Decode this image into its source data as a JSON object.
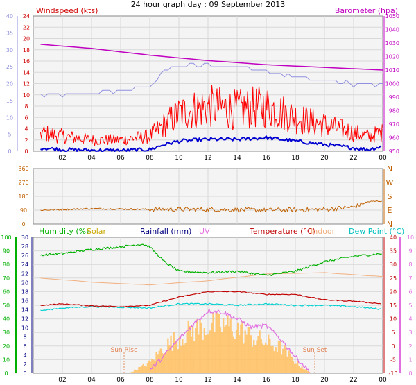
{
  "page": {
    "title": "24 hour graph day : 09 September 2013"
  },
  "colors": {
    "wind": "#ff0000",
    "gust_blue": "#0000d0",
    "windAxis": "#9090e0",
    "baro": "#c000c0",
    "baroAxis": "#c000c0",
    "dir": "#c06000",
    "humidity": "#00b000",
    "solar": "#c8a800",
    "rainfall": "#000080",
    "uv": "#e070e0",
    "temperature": "#c00000",
    "indoor": "#f0b080",
    "dewpoint": "#00d0d0",
    "solarFill": "#ffc060",
    "text": "#000000"
  },
  "chart_data": [
    {
      "type": "line",
      "id": "wind_pressure",
      "title": "",
      "legend": {
        "windspeed": "Windspeed (kts)",
        "barometer": "Barometer (hpa)"
      },
      "x_ticks": [
        "02",
        "04",
        "06",
        "08",
        "10",
        "12",
        "14",
        "16",
        "18",
        "20",
        "22",
        "00"
      ],
      "left_axis": {
        "ticks": [
          "0",
          "5",
          "10",
          "15",
          "20",
          "25",
          "30",
          "35",
          "40"
        ],
        "range": [
          0,
          40
        ],
        "color": "#9090e0"
      },
      "left_axis_inner": {
        "ticks": [
          "0",
          "2",
          "4",
          "6",
          "8",
          "10",
          "12",
          "14",
          "16",
          "18",
          "20",
          "22",
          "24"
        ],
        "range": [
          0,
          24
        ],
        "color": "#d00000"
      },
      "right_axis": {
        "ticks": [
          "950",
          "960",
          "970",
          "980",
          "990",
          "1000",
          "1010",
          "1020",
          "1030",
          "1040",
          "1050"
        ],
        "range": [
          950,
          1050
        ],
        "color": "#c000c0"
      },
      "grid": true,
      "series": [
        {
          "name": "Barometer",
          "unit": "hpa",
          "x_hours": [
            0.5,
            4,
            8,
            12,
            16,
            20,
            24
          ],
          "values": [
            1029,
            1026,
            1021,
            1017,
            1014,
            1012,
            1010
          ]
        },
        {
          "name": "Windspeed avg",
          "x_hours": [
            0.5,
            2,
            4,
            6,
            8,
            9,
            10,
            12,
            14,
            16,
            18,
            20,
            22,
            23,
            24
          ],
          "values": [
            1,
            0.5,
            0.3,
            0.2,
            0.5,
            2,
            3,
            3.5,
            3.5,
            4,
            3,
            2,
            1,
            0.5,
            1.5
          ]
        },
        {
          "name": "Gust",
          "x_hours": [
            0.5,
            2,
            4,
            6,
            8,
            9,
            10,
            12,
            14,
            16,
            18,
            20,
            22,
            23,
            24
          ],
          "values": [
            5,
            4,
            3,
            3,
            4,
            7,
            10,
            12,
            11,
            12,
            9,
            7,
            5,
            4,
            5
          ]
        },
        {
          "name": "Gust max",
          "x_hours": [
            0.5,
            4,
            8,
            9,
            10,
            12,
            14,
            16,
            18,
            20,
            22,
            24
          ],
          "values": [
            16.5,
            17,
            19,
            24,
            25,
            25.5,
            25,
            24,
            22,
            21,
            20,
            19.5
          ]
        }
      ]
    },
    {
      "type": "line",
      "id": "wind_direction",
      "right_axis": {
        "ticks": [
          "N",
          "W",
          "S",
          "E",
          "N"
        ]
      },
      "left_axis": {
        "ticks": [
          "0",
          "90",
          "180",
          "270",
          "360"
        ],
        "range": [
          0,
          360
        ]
      },
      "grid": true,
      "series": [
        {
          "name": "Wind direction",
          "x_hours": [
            0.5,
            4,
            8,
            12,
            16,
            20,
            22,
            23,
            24
          ],
          "values": [
            90,
            100,
            95,
            95,
            90,
            95,
            110,
            145,
            150
          ]
        }
      ]
    },
    {
      "type": "line",
      "id": "temp_humidity",
      "legend": {
        "humidity": "Humidity (%)",
        "solar": "Solar",
        "rainfall": "Rainfall (mm)",
        "uv": "UV",
        "temperature": "Temperature (°C)",
        "indoor": "Indoor",
        "dewpoint": "Dew Point (°C)"
      },
      "x_ticks": [
        "02",
        "04",
        "06",
        "08",
        "10",
        "12",
        "14",
        "16",
        "18",
        "20",
        "22",
        "00"
      ],
      "humidity_axis": {
        "ticks": [
          "0",
          "10",
          "20",
          "30",
          "40",
          "50",
          "60",
          "70",
          "80",
          "90",
          "100"
        ],
        "range": [
          0,
          100
        ],
        "color": "#00b000"
      },
      "rain_axis": {
        "ticks": [
          "0",
          "2",
          "4",
          "6",
          "8",
          "10",
          "12",
          "14",
          "16",
          "18",
          "20",
          "22",
          "24",
          "26",
          "28",
          "30"
        ],
        "range": [
          0,
          30
        ],
        "color": "#000080"
      },
      "temperature_axis": {
        "ticks": [
          "-10",
          "-5",
          "0",
          "5",
          "10",
          "15",
          "20",
          "25",
          "30",
          "35",
          "40"
        ],
        "range": [
          -10,
          40
        ],
        "color": "#c00000"
      },
      "uv_axis": {
        "ticks": [
          "0",
          "1",
          "2",
          "3",
          "4",
          "5",
          "6",
          "7",
          "8",
          "9",
          "10"
        ],
        "range": [
          0,
          10
        ],
        "color": "#e070e0"
      },
      "annotations": {
        "sunrise": "Sun Rise",
        "sunset": "Sun Set"
      },
      "grid": true,
      "series": [
        {
          "name": "Humidity",
          "unit": "%",
          "x_hours": [
            0.5,
            2,
            4,
            6,
            7.5,
            8,
            9,
            10,
            12,
            14,
            16,
            18,
            20,
            22,
            24
          ],
          "values": [
            87,
            88,
            91,
            93,
            95,
            93,
            82,
            75,
            74,
            75,
            72,
            75,
            82,
            86,
            88
          ]
        },
        {
          "name": "Temperature",
          "unit": "°C",
          "x_hours": [
            0.5,
            2,
            4,
            6,
            8,
            10,
            12,
            14,
            16,
            18,
            20,
            22,
            24
          ],
          "values": [
            15,
            15.5,
            14.8,
            14.5,
            15,
            18,
            20,
            20,
            19,
            19,
            17,
            16.5,
            15.5
          ]
        },
        {
          "name": "Dew Point",
          "unit": "°C",
          "x_hours": [
            0.5,
            2,
            4,
            6,
            8,
            10,
            12,
            14,
            16,
            18,
            20,
            22,
            24
          ],
          "values": [
            13,
            14,
            14.5,
            14.3,
            14,
            15.5,
            15.5,
            15,
            15.5,
            15,
            15,
            14.5,
            13.5
          ]
        },
        {
          "name": "Indoor",
          "unit": "°C",
          "x_hours": [
            0.5,
            4,
            8,
            12,
            16,
            20,
            24
          ],
          "values": [
            25,
            23.5,
            22.5,
            24,
            26.5,
            27,
            25.5
          ]
        },
        {
          "name": "UV",
          "x_hours": [
            8,
            9,
            10,
            11,
            12,
            13,
            14,
            15,
            16,
            17,
            18,
            19
          ],
          "values": [
            0.2,
            1.3,
            2.5,
            3.6,
            4.6,
            4.5,
            4,
            3.4,
            3.5,
            2.5,
            1.2,
            0.1
          ]
        },
        {
          "name": "Solar",
          "x_hours": [
            6.5,
            8,
            9,
            10,
            11,
            12,
            13,
            14,
            15,
            16,
            17,
            18,
            19
          ],
          "values": [
            0,
            1,
            2.5,
            3.3,
            4,
            4.3,
            4.4,
            4.1,
            3.3,
            2.8,
            2.3,
            1,
            0
          ]
        }
      ]
    }
  ]
}
